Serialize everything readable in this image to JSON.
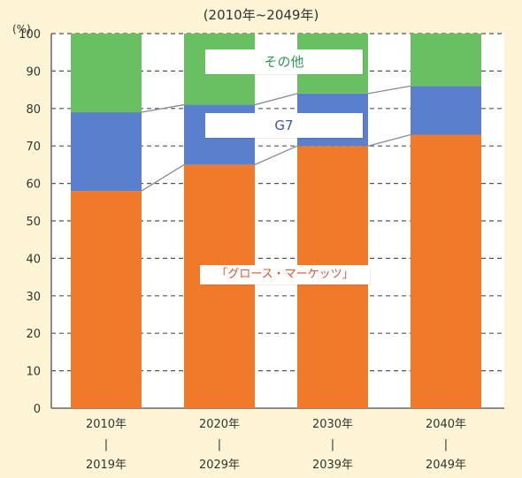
{
  "subtitle": "(2010年~2049年)",
  "chart_data": {
    "type": "bar",
    "stacked": true,
    "unit_label": "(%)",
    "categories": [
      [
        "2010年",
        "|",
        "2019年"
      ],
      [
        "2020年",
        "|",
        "2029年"
      ],
      [
        "2030年",
        "|",
        "2039年"
      ],
      [
        "2040年",
        "|",
        "2049年"
      ]
    ],
    "series": [
      {
        "name": "「グロース・マーケッツ」",
        "color": "#f07a2a",
        "values": [
          58,
          65,
          70,
          73
        ]
      },
      {
        "name": "G7",
        "color": "#5a7fcc",
        "values": [
          21,
          16,
          14,
          13
        ]
      },
      {
        "name": "その他",
        "color": "#69c060",
        "values": [
          21,
          19,
          16,
          14
        ]
      }
    ],
    "ylim": [
      0,
      100
    ],
    "yticks": [
      0,
      10,
      20,
      30,
      40,
      50,
      60,
      70,
      80,
      90,
      100
    ],
    "grid": true
  }
}
